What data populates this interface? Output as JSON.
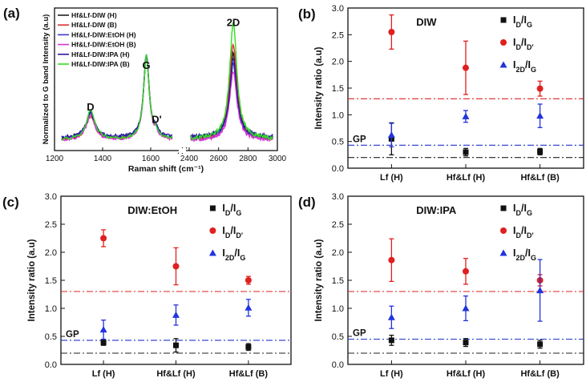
{
  "figure": {
    "panel_labels": [
      "(a)",
      "(b)",
      "(c)",
      "(d)"
    ]
  },
  "chart_data": [
    {
      "panel": "(a)",
      "type": "line",
      "title": "",
      "xlabel": "Raman shift (cm⁻¹)",
      "ylabel": "Normalized to G band Intensity (a.u)",
      "x_ticks_left": [
        1200,
        1400,
        1600
      ],
      "x_ticks_right": [
        2400,
        2600,
        2800,
        3000
      ],
      "xlim_left": [
        1200,
        1700
      ],
      "xlim_right": [
        2400,
        3000
      ],
      "ylim": [
        0,
        1.5
      ],
      "peak_labels": [
        {
          "text": "D",
          "x": 1350,
          "y": 0.42
        },
        {
          "text": "G",
          "x": 1582,
          "y": 0.86
        },
        {
          "text": "D'",
          "x": 1625,
          "y": 0.29
        },
        {
          "text": "2D",
          "x": 2700,
          "y": 1.31
        }
      ],
      "legend_position": "top-left",
      "series": [
        {
          "name": "Hf&Lf-DIW (H)",
          "color": "#222222",
          "d_height": 0.28,
          "twod_height": 0.9,
          "offset": 0.0
        },
        {
          "name": "Hf&Lf-DIW (B)",
          "color": "#e03030",
          "d_height": 0.24,
          "twod_height": 1.0,
          "offset": 0.0
        },
        {
          "name": "Hf&Lf-DIW:EtOH (H)",
          "color": "#3a3acc",
          "d_height": 0.27,
          "twod_height": 0.78,
          "offset": 0.01
        },
        {
          "name": "Hf&Lf-DIW:EtOH (B)",
          "color": "#d436d4",
          "d_height": 0.26,
          "twod_height": 0.72,
          "offset": -0.01
        },
        {
          "name": "Hf&Lf-DIW:IPA (H)",
          "color": "#2a1a9a",
          "d_height": 0.26,
          "twod_height": 0.82,
          "offset": 0.02
        },
        {
          "name": "Hf&Lf-DIW:IPA (B)",
          "color": "#33dd22",
          "d_height": 0.3,
          "twod_height": 1.22,
          "offset": 0.0
        }
      ]
    },
    {
      "panel": "(b)",
      "type": "scatter",
      "title": "DIW",
      "xlabel": "",
      "ylabel": "Intensity ratio (a.u)",
      "categories": [
        "Lf (H)",
        "Hf&Lf (H)",
        "Hf&Lf (B)"
      ],
      "ylim": [
        0,
        3.0
      ],
      "yticks": [
        "0.0",
        "0.5",
        "1.0",
        "1.5",
        "2.0",
        "2.5",
        "3.0"
      ],
      "gp_label": "GP",
      "reference_lines": [
        {
          "y": 1.3,
          "color": "#dd2222",
          "style": "dashdot"
        },
        {
          "y": 0.43,
          "color": "#2233cc",
          "style": "dashdot"
        },
        {
          "y": 0.2,
          "color": "#222222",
          "style": "dashdot"
        }
      ],
      "series": [
        {
          "name": "ID/IG",
          "symbol": "square",
          "color": "#111111",
          "values": [
            0.55,
            0.3,
            0.31
          ],
          "errors": [
            0.3,
            0.07,
            0.06
          ]
        },
        {
          "name": "ID/ID'",
          "symbol": "circle",
          "color": "#e02020",
          "values": [
            2.55,
            1.88,
            1.49
          ],
          "errors": [
            0.32,
            0.5,
            0.14
          ]
        },
        {
          "name": "I2D/IG",
          "symbol": "triangle",
          "color": "#2233dd",
          "values": [
            0.62,
            0.97,
            0.98
          ],
          "errors": [
            0.22,
            0.11,
            0.22
          ]
        }
      ]
    },
    {
      "panel": "(c)",
      "type": "scatter",
      "title": "DIW:EtOH",
      "xlabel": "",
      "ylabel": "Intensity ratio (a.u)",
      "categories": [
        "Lf (H)",
        "Hf&Lf (H)",
        "Hf&Lf (B)"
      ],
      "ylim": [
        0,
        3.0
      ],
      "yticks": [
        "0.0",
        "0.5",
        "1.0",
        "1.5",
        "2.0",
        "2.5",
        "3.0"
      ],
      "gp_label": "GP",
      "reference_lines": [
        {
          "y": 1.3,
          "color": "#dd2222",
          "style": "dashdot"
        },
        {
          "y": 0.43,
          "color": "#2233cc",
          "style": "dashdot"
        },
        {
          "y": 0.2,
          "color": "#222222",
          "style": "dashdot"
        }
      ],
      "series": [
        {
          "name": "ID/IG",
          "symbol": "square",
          "color": "#111111",
          "values": [
            0.39,
            0.34,
            0.31
          ],
          "errors": [
            0.05,
            0.12,
            0.06
          ]
        },
        {
          "name": "ID/ID'",
          "symbol": "circle",
          "color": "#e02020",
          "values": [
            2.25,
            1.75,
            1.5
          ],
          "errors": [
            0.15,
            0.33,
            0.07
          ]
        },
        {
          "name": "I2D/IG",
          "symbol": "triangle",
          "color": "#2233dd",
          "values": [
            0.62,
            0.88,
            1.01
          ],
          "errors": [
            0.17,
            0.18,
            0.15
          ]
        }
      ]
    },
    {
      "panel": "(d)",
      "type": "scatter",
      "title": "DIW:IPA",
      "xlabel": "",
      "ylabel": "Intensity ratio (a.u)",
      "categories": [
        "Lf (H)",
        "Hf&Lf (H)",
        "Hf&Lf (B)"
      ],
      "ylim": [
        0,
        3.0
      ],
      "yticks": [
        "0.0",
        "0.5",
        "1.0",
        "1.5",
        "2.0",
        "2.5",
        "3.0"
      ],
      "gp_label": "GP",
      "reference_lines": [
        {
          "y": 1.3,
          "color": "#dd2222",
          "style": "dashdot"
        },
        {
          "y": 0.45,
          "color": "#2233cc",
          "style": "dashdot"
        },
        {
          "y": 0.2,
          "color": "#222222",
          "style": "dashdot"
        }
      ],
      "series": [
        {
          "name": "ID/IG",
          "symbol": "square",
          "color": "#111111",
          "values": [
            0.43,
            0.39,
            0.36
          ],
          "errors": [
            0.09,
            0.07,
            0.07
          ]
        },
        {
          "name": "ID/ID'",
          "symbol": "circle",
          "color": "#e02020",
          "values": [
            1.86,
            1.66,
            1.5
          ],
          "errors": [
            0.38,
            0.23,
            0.1
          ]
        },
        {
          "name": "I2D/IG",
          "symbol": "triangle",
          "color": "#2233dd",
          "values": [
            0.84,
            1.0,
            1.32
          ],
          "errors": [
            0.2,
            0.22,
            0.55
          ]
        }
      ]
    }
  ]
}
